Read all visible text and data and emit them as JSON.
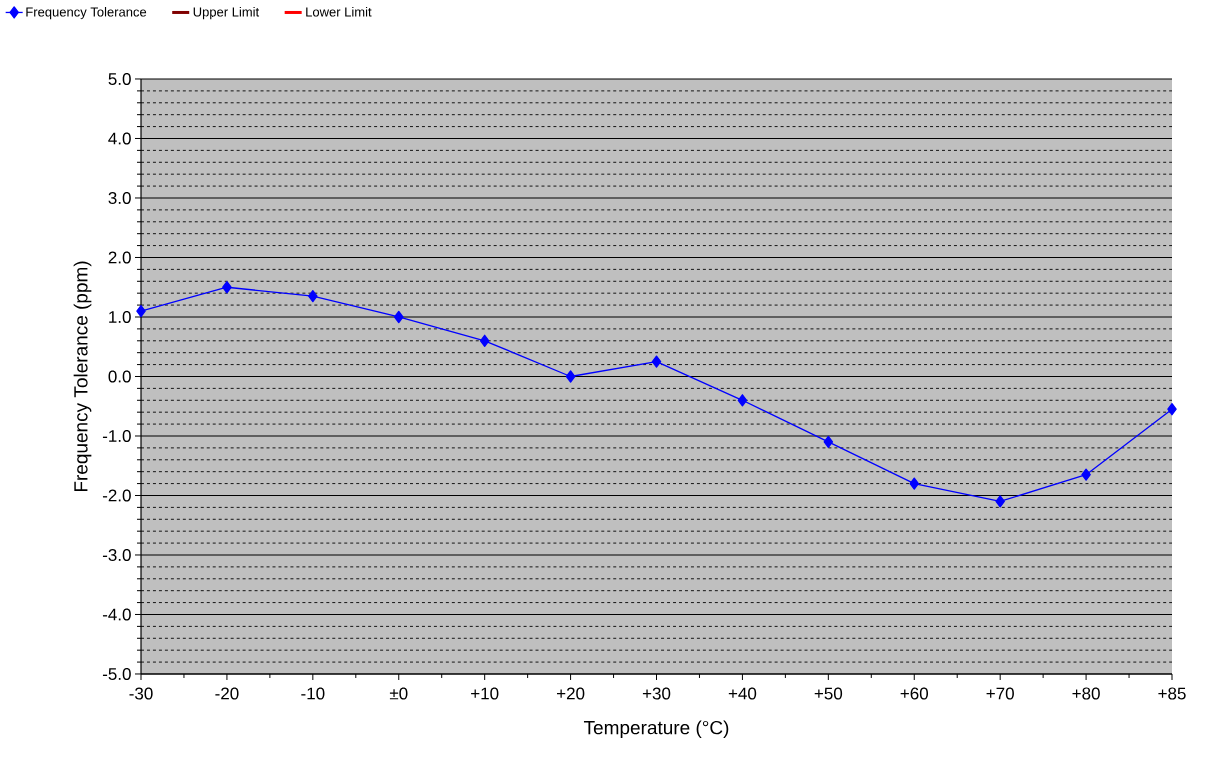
{
  "chart_data": {
    "type": "line",
    "xlabel": "Temperature (°C)",
    "ylabel": "Frequency Tolerance (ppm)",
    "categories": [
      "-30",
      "-20",
      "-10",
      "±0",
      "+10",
      "+20",
      "+30",
      "+40",
      "+50",
      "+60",
      "+70",
      "+80",
      "+85"
    ],
    "series": [
      {
        "name": "Frequency Tolerance",
        "color": "#0000ff",
        "marker": "diamond",
        "values": [
          1.1,
          1.5,
          1.35,
          1.0,
          0.6,
          0.0,
          0.25,
          -0.4,
          -1.1,
          -1.8,
          -2.1,
          -1.65,
          -0.55
        ]
      },
      {
        "name": "Upper Limit",
        "color": "#800000",
        "marker": "none",
        "values": [
          null,
          null,
          null,
          null,
          null,
          null,
          null,
          null,
          null,
          null,
          null,
          null,
          null
        ]
      },
      {
        "name": "Lower Limit",
        "color": "#ff0000",
        "marker": "none",
        "values": [
          null,
          null,
          null,
          null,
          null,
          null,
          null,
          null,
          null,
          null,
          null,
          null,
          null
        ]
      }
    ],
    "ylim": [
      -5.0,
      5.0
    ],
    "yticks": [
      {
        "value": -5,
        "label": "-5.0"
      },
      {
        "value": -4,
        "label": "-4.0"
      },
      {
        "value": -3,
        "label": "-3.0"
      },
      {
        "value": -2,
        "label": "-2.0"
      },
      {
        "value": -1,
        "label": "-1.0"
      },
      {
        "value": 0,
        "label": "0.0"
      },
      {
        "value": 1,
        "label": "1.0"
      },
      {
        "value": 2,
        "label": "2.0"
      },
      {
        "value": 3,
        "label": "3.0"
      },
      {
        "value": 4,
        "label": "4.0"
      },
      {
        "value": 5,
        "label": "5.0"
      }
    ],
    "grid": "y",
    "legend": "top left"
  }
}
